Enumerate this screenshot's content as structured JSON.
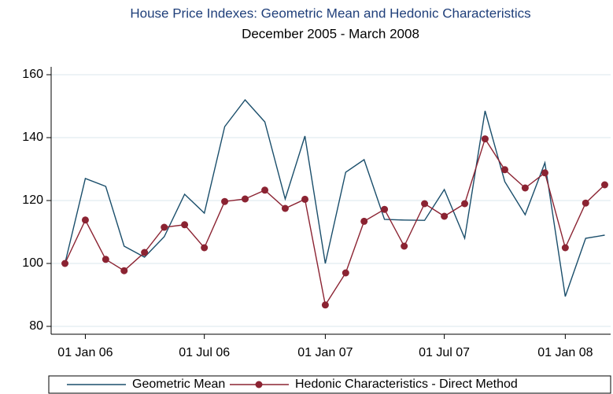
{
  "chart_data": {
    "type": "line",
    "title": "House Price Indexes: Geometric Mean and Hedonic Characteristics",
    "subtitle": "December 2005 - March 2008",
    "x": [
      "2005-12-01",
      "2006-01-01",
      "2006-02-01",
      "2006-03-01",
      "2006-04-01",
      "2006-05-01",
      "2006-06-01",
      "2006-07-01",
      "2006-08-01",
      "2006-09-01",
      "2006-10-01",
      "2006-11-01",
      "2006-12-01",
      "2007-01-01",
      "2007-02-01",
      "2007-03-01",
      "2007-04-01",
      "2007-05-01",
      "2007-06-01",
      "2007-07-01",
      "2007-08-01",
      "2007-09-01",
      "2007-10-01",
      "2007-11-01",
      "2007-12-01",
      "2008-01-01",
      "2008-02-01",
      "2008-03-01"
    ],
    "series": [
      {
        "name": "Geometric Mean",
        "color": "#1a4e6b",
        "marker": false,
        "values": [
          100,
          127,
          124.5,
          105.5,
          102,
          108.5,
          122,
          116,
          143.5,
          152,
          145,
          120.5,
          140.5,
          100,
          129,
          133,
          114,
          113.8,
          113.7,
          123.5,
          108,
          148.5,
          126,
          115.5,
          132,
          89.5,
          108,
          109
        ]
      },
      {
        "name": "Hedonic Characteristics - Direct Method",
        "color": "#8b2332",
        "marker": true,
        "values": [
          100,
          113.8,
          101.3,
          97.7,
          103.5,
          111.5,
          112.3,
          105,
          119.7,
          120.5,
          123.3,
          117.5,
          120.4,
          86.8,
          97,
          113.4,
          117.2,
          105.5,
          119,
          115,
          119,
          139.6,
          129.8,
          124,
          128.8,
          105,
          119.2,
          125
        ]
      }
    ],
    "xlim": [
      "2005-11-10",
      "2008-03-10"
    ],
    "xticks": [
      {
        "value": "2006-01-01",
        "label": "01 Jan 06"
      },
      {
        "value": "2006-07-01",
        "label": "01 Jul 06"
      },
      {
        "value": "2007-01-01",
        "label": "01 Jan 07"
      },
      {
        "value": "2007-07-01",
        "label": "01 Jul 07"
      },
      {
        "value": "2008-01-01",
        "label": "01 Jan 08"
      }
    ],
    "ylim": [
      77.5,
      162.5
    ],
    "yticks": [
      80,
      100,
      120,
      140,
      160
    ],
    "grid": true
  }
}
